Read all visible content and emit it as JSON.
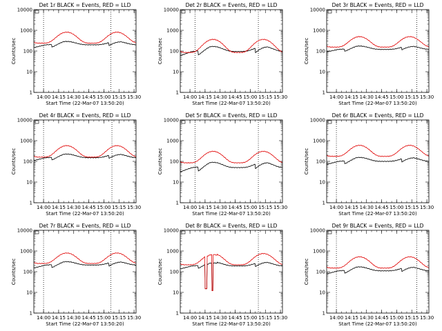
{
  "chart_data": [
    {
      "type": "line",
      "title": "Det 1r BLACK = Events, RED = LLD",
      "xlabel": "Start Time (22-Mar-07 13:50:20)",
      "ylabel": "Counts/sec",
      "ylim": [
        1,
        10000
      ],
      "yscale": "log",
      "xticks": [
        "14:00",
        "14:15",
        "14:30",
        "14:45",
        "15:00",
        "15:15",
        "15:30"
      ],
      "yticks": [
        "1",
        "10",
        "100",
        "1000",
        "10000"
      ],
      "dotted_lines_at": [
        "14:00",
        "15:07"
      ],
      "series": [
        {
          "name": "Events",
          "color": "#000000",
          "base": 200,
          "amp": 0.45,
          "step": 0.72
        },
        {
          "name": "LLD",
          "color": "#e00000",
          "base": 240,
          "amp": 2.4
        }
      ]
    },
    {
      "type": "line",
      "title": "Det 2r BLACK = Events, RED = LLD",
      "xlabel": "Start Time (22-Mar-07 13:50:20)",
      "ylabel": "Counts/sec",
      "ylim": [
        1,
        10000
      ],
      "yscale": "log",
      "xticks": [
        "14:00",
        "14:15",
        "14:30",
        "14:45",
        "15:00",
        "15:15",
        "15:30"
      ],
      "yticks": [
        "1",
        "10",
        "100",
        "1000",
        "10000"
      ],
      "dotted_lines_at": [
        "14:05",
        "15:08"
      ],
      "series": [
        {
          "name": "Events",
          "color": "#000000",
          "base": 95,
          "amp": 0.75,
          "step": 0.6
        },
        {
          "name": "LLD",
          "color": "#e00000",
          "base": 85,
          "amp": 3.3
        }
      ]
    },
    {
      "type": "line",
      "title": "Det 3r BLACK = Events, RED = LLD",
      "xlabel": "Start Time (22-Mar-07 13:50:20)",
      "ylabel": "Counts/sec",
      "ylim": [
        1,
        10000
      ],
      "yscale": "log",
      "xticks": [
        "14:00",
        "14:15",
        "14:30",
        "14:45",
        "15:00",
        "15:15",
        "15:30"
      ],
      "yticks": [
        "1",
        "10",
        "100",
        "1000",
        "10000"
      ],
      "dotted_lines_at": [
        "15:20"
      ],
      "series": [
        {
          "name": "Events",
          "color": "#000000",
          "base": 120,
          "amp": 0.45,
          "step": 0.75
        },
        {
          "name": "LLD",
          "color": "#e00000",
          "base": 155,
          "amp": 2.2
        }
      ]
    },
    {
      "type": "line",
      "title": "Det 4r BLACK = Events, RED = LLD",
      "xlabel": "Start Time (22-Mar-07 13:50:20)",
      "ylabel": "Counts/sec",
      "ylim": [
        1,
        10000
      ],
      "yscale": "log",
      "xticks": [
        "14:00",
        "14:15",
        "14:30",
        "14:45",
        "15:00",
        "15:15",
        "15:30"
      ],
      "yticks": [
        "1",
        "10",
        "100",
        "1000",
        "10000"
      ],
      "dotted_lines_at": [
        "14:00",
        "15:08"
      ],
      "series": [
        {
          "name": "Events",
          "color": "#000000",
          "base": 150,
          "amp": 0.5,
          "step": 0.72
        },
        {
          "name": "LLD",
          "color": "#e00000",
          "base": 160,
          "amp": 2.6
        }
      ]
    },
    {
      "type": "line",
      "title": "Det 5r BLACK = Events, RED = LLD",
      "xlabel": "Start Time (22-Mar-07 13:50:20)",
      "ylabel": "Counts/sec",
      "ylim": [
        1,
        10000
      ],
      "yscale": "log",
      "xticks": [
        "14:00",
        "14:15",
        "14:30",
        "14:45",
        "15:00",
        "15:15",
        "15:30"
      ],
      "yticks": [
        "1",
        "10",
        "100",
        "1000",
        "10000"
      ],
      "dotted_lines_at": [
        "14:05",
        "15:08"
      ],
      "series": [
        {
          "name": "Events",
          "color": "#000000",
          "base": 50,
          "amp": 0.8,
          "step": 0.6
        },
        {
          "name": "LLD",
          "color": "#e00000",
          "base": 85,
          "amp": 2.6
        }
      ]
    },
    {
      "type": "line",
      "title": "Det 6r BLACK = Events, RED = LLD",
      "xlabel": "Start Time (22-Mar-07 13:50:20)",
      "ylabel": "Counts/sec",
      "ylim": [
        1,
        10000
      ],
      "yscale": "log",
      "xticks": [
        "14:00",
        "14:15",
        "14:30",
        "14:45",
        "15:00",
        "15:15",
        "15:30"
      ],
      "yticks": [
        "1",
        "10",
        "100",
        "1000",
        "10000"
      ],
      "dotted_lines_at": [
        "14:00",
        "15:20"
      ],
      "series": [
        {
          "name": "Events",
          "color": "#000000",
          "base": 100,
          "amp": 0.55,
          "step": 0.7
        },
        {
          "name": "LLD",
          "color": "#e00000",
          "base": 175,
          "amp": 2.4
        }
      ]
    },
    {
      "type": "line",
      "title": "Det 7r BLACK = Events, RED = LLD",
      "xlabel": "Start Time (22-Mar-07 13:50:20)",
      "ylabel": "Counts/sec",
      "ylim": [
        1,
        10000
      ],
      "yscale": "log",
      "xticks": [
        "14:00",
        "14:15",
        "14:30",
        "14:45",
        "15:00",
        "15:15",
        "15:30"
      ],
      "yticks": [
        "1",
        "10",
        "100",
        "1000",
        "10000"
      ],
      "dotted_lines_at": [
        "14:00",
        "15:07"
      ],
      "series": [
        {
          "name": "Events",
          "color": "#000000",
          "base": 210,
          "amp": 0.45,
          "step": 0.7
        },
        {
          "name": "LLD",
          "color": "#e00000",
          "base": 250,
          "amp": 2.2
        }
      ]
    },
    {
      "type": "line",
      "title": "Det 8r BLACK = Events, RED = LLD",
      "xlabel": "Start Time (22-Mar-07 13:50:20)",
      "ylabel": "Counts/sec",
      "ylim": [
        1,
        10000
      ],
      "yscale": "log",
      "xticks": [
        "14:00",
        "14:15",
        "14:30",
        "14:45",
        "15:00",
        "15:15",
        "15:30"
      ],
      "yticks": [
        "1",
        "10",
        "100",
        "1000",
        "10000"
      ],
      "dotted_lines_at": [
        "15:08"
      ],
      "dropout_interval": [
        "14:15",
        "14:27"
      ],
      "series": [
        {
          "name": "Events",
          "color": "#000000",
          "base": 190,
          "amp": 0.55,
          "step": 0.7
        },
        {
          "name": "LLD",
          "color": "#e00000",
          "base": 215,
          "amp": 2.5
        }
      ]
    },
    {
      "type": "line",
      "title": "Det 9r BLACK = Events, RED = LLD",
      "xlabel": "Start Time (22-Mar-07 13:50:20)",
      "ylabel": "Counts/sec",
      "ylim": [
        1,
        10000
      ],
      "yscale": "log",
      "xticks": [
        "14:00",
        "14:15",
        "14:30",
        "14:45",
        "15:00",
        "15:15",
        "15:30"
      ],
      "yticks": [
        "1",
        "10",
        "100",
        "1000",
        "10000"
      ],
      "dotted_lines_at": [
        "14:00",
        "15:20"
      ],
      "series": [
        {
          "name": "Events",
          "color": "#000000",
          "base": 110,
          "amp": 0.55,
          "step": 0.7
        },
        {
          "name": "LLD",
          "color": "#e00000",
          "base": 150,
          "amp": 2.5
        }
      ]
    }
  ]
}
